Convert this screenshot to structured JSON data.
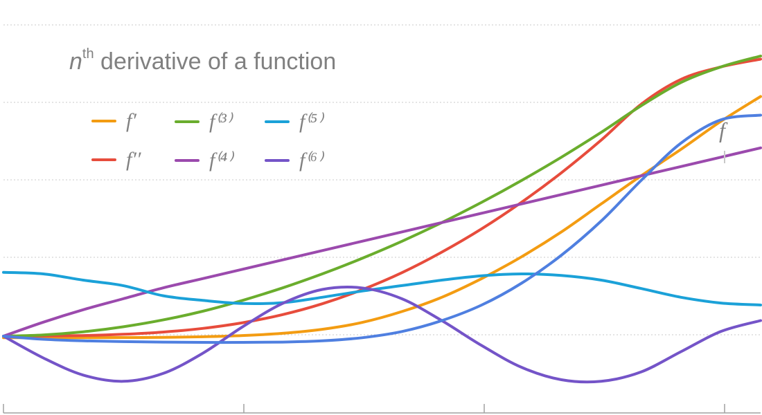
{
  "chart_data": {
    "type": "line",
    "title_n": "n",
    "title_sup": "th",
    "title_rest": " derivative of a function",
    "function_label": "f",
    "grid": true,
    "x": [
      0,
      0.5,
      1,
      1.5,
      2,
      2.5,
      3,
      3.5,
      4,
      4.5,
      5,
      5.5,
      6,
      6.5,
      7,
      7.5,
      8,
      8.5,
      9,
      9.5
    ],
    "series": [
      {
        "name": "f′",
        "color": "#f39c12",
        "values": [
          -0.1,
          -0.1,
          -0.1,
          -0.09,
          -0.08,
          -0.04,
          0.04,
          0.18,
          0.44,
          0.88,
          1.58,
          2.5,
          3.7,
          5.1,
          6.7,
          8.5,
          10.3,
          12.0,
          13.8,
          15.4
        ]
      },
      {
        "name": "f′′",
        "color": "#e74c3c",
        "values": [
          0,
          0.01,
          0.04,
          0.12,
          0.26,
          0.5,
          0.86,
          1.38,
          2.08,
          2.98,
          4.08,
          5.4,
          6.9,
          8.6,
          10.5,
          12.6,
          14.9,
          16.5,
          17.3,
          17.8
        ]
      },
      {
        "name": "f⁽³⁾",
        "color": "#6aad2d",
        "values": [
          0,
          0.08,
          0.28,
          0.6,
          1.04,
          1.6,
          2.3,
          3.1,
          4.0,
          5.0,
          6.1,
          7.3,
          8.6,
          10.0,
          11.5,
          13.1,
          14.8,
          16.3,
          17.3,
          18.0
        ]
      },
      {
        "name": "f⁽⁴⁾",
        "color": "#9b4aad",
        "values": [
          0,
          0.9,
          1.7,
          2.4,
          3.1,
          3.7,
          4.3,
          4.9,
          5.5,
          6.1,
          6.7,
          7.3,
          7.9,
          8.5,
          9.1,
          9.7,
          10.3,
          10.9,
          11.5,
          12.1
        ]
      },
      {
        "name": "f⁽⁵⁾",
        "color": "#1ba1d8",
        "values": [
          4.1,
          4.0,
          3.6,
          3.25,
          2.6,
          2.3,
          2.1,
          2.15,
          2.5,
          2.9,
          3.25,
          3.6,
          3.88,
          4.0,
          3.9,
          3.6,
          3.06,
          2.5,
          2.13,
          2.0
        ]
      },
      {
        "name": "f⁽⁶⁾",
        "color": "#7454c8",
        "values": [
          0,
          -1.4,
          -2.5,
          -2.9,
          -2.4,
          -1.1,
          0.6,
          2.1,
          3.0,
          3.1,
          2.4,
          1.0,
          -0.6,
          -2.0,
          -2.8,
          -2.9,
          -2.3,
          -1.0,
          0.3,
          1.0
        ]
      },
      {
        "name": "f",
        "color": "#4f7fe0",
        "values": [
          0,
          -0.2,
          -0.3,
          -0.35,
          -0.38,
          -0.4,
          -0.4,
          -0.38,
          -0.3,
          -0.1,
          0.3,
          1.0,
          2.0,
          3.4,
          5.2,
          7.4,
          10.0,
          12.4,
          13.9,
          14.2
        ]
      }
    ],
    "legend_rows": [
      [
        "f′",
        "f⁽³⁾",
        "f⁽⁵⁾"
      ],
      [
        "f′′",
        "f⁽⁴⁾",
        "f⁽⁶⁾"
      ]
    ],
    "ylim": [
      -6,
      20
    ],
    "xlim": [
      0,
      9.5
    ]
  }
}
